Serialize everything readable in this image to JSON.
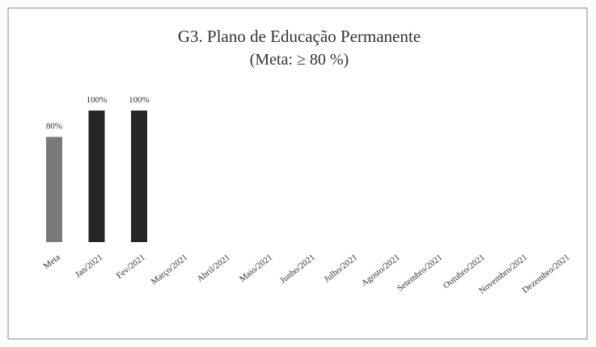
{
  "chart_data": {
    "type": "bar",
    "title": "G3. Plano de Educação Permanente",
    "subtitle": "(Meta: ≥ 80 %)",
    "categories": [
      "Meta",
      "Jan/2021",
      "Fev/2021",
      "Março/2021",
      "Abril/2021",
      "Maio/2021",
      "Junho/2021",
      "Julho/2021",
      "Agosto/2021",
      "Setembro/2021",
      "Outubro/2021",
      "Novembro/2021",
      "Dezembro/2021"
    ],
    "values": [
      80,
      100,
      100,
      null,
      null,
      null,
      null,
      null,
      null,
      null,
      null,
      null,
      null
    ],
    "value_labels": [
      "80%",
      "100%",
      "100%",
      null,
      null,
      null,
      null,
      null,
      null,
      null,
      null,
      null,
      null
    ],
    "colors": [
      "#7a7a7a",
      "#262626",
      "#262626",
      "#262626",
      "#262626",
      "#262626",
      "#262626",
      "#262626",
      "#262626",
      "#262626",
      "#262626",
      "#262626",
      "#262626"
    ]
  }
}
